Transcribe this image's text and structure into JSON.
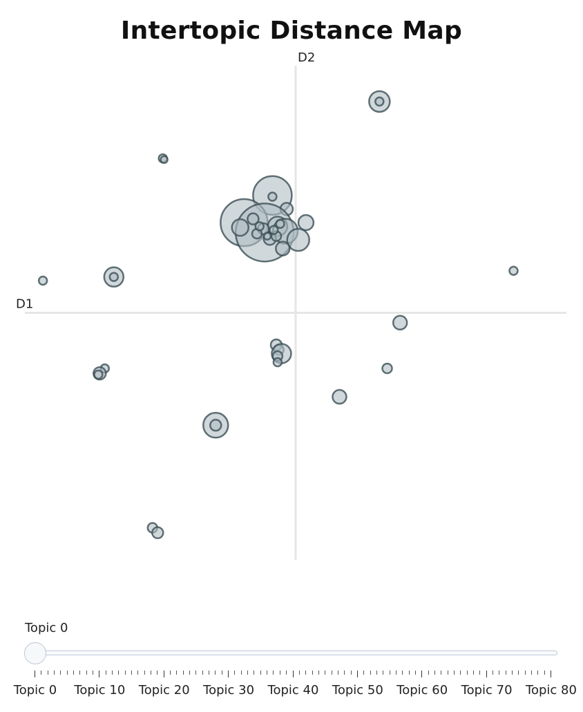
{
  "chart_data": {
    "type": "scatter",
    "title": "Intertopic Distance Map",
    "xlabel": "D1",
    "ylabel": "D2",
    "xlim": [
      -21,
      21
    ],
    "ylim": [
      -20,
      20
    ],
    "grid": false,
    "marker_fill": "#b0bec5",
    "marker_stroke": "#3b4f55",
    "axis_color": "#e6e6e6",
    "points": [
      {
        "x": 6.5,
        "y": 17.1,
        "size": 15
      },
      {
        "x": 6.5,
        "y": 17.1,
        "size": 6
      },
      {
        "x": -10.3,
        "y": 12.5,
        "size": 6
      },
      {
        "x": -10.2,
        "y": 12.4,
        "size": 5
      },
      {
        "x": -1.8,
        "y": 9.5,
        "size": 28
      },
      {
        "x": -1.8,
        "y": 9.4,
        "size": 6
      },
      {
        "x": -0.7,
        "y": 8.4,
        "size": 9
      },
      {
        "x": -4.0,
        "y": 7.3,
        "size": 34
      },
      {
        "x": -2.4,
        "y": 6.5,
        "size": 42
      },
      {
        "x": -4.3,
        "y": 6.9,
        "size": 12
      },
      {
        "x": -3.3,
        "y": 7.6,
        "size": 8
      },
      {
        "x": -1.4,
        "y": 7.0,
        "size": 14
      },
      {
        "x": -0.8,
        "y": 6.6,
        "size": 18
      },
      {
        "x": 0.2,
        "y": 5.9,
        "size": 16
      },
      {
        "x": 0.8,
        "y": 7.3,
        "size": 11
      },
      {
        "x": -2.0,
        "y": 6.0,
        "size": 9
      },
      {
        "x": -2.5,
        "y": 6.8,
        "size": 8
      },
      {
        "x": -3.0,
        "y": 6.4,
        "size": 7
      },
      {
        "x": -2.8,
        "y": 7.0,
        "size": 6
      },
      {
        "x": -1.5,
        "y": 6.2,
        "size": 7
      },
      {
        "x": -1.2,
        "y": 7.2,
        "size": 6
      },
      {
        "x": -1.7,
        "y": 6.7,
        "size": 6
      },
      {
        "x": -2.2,
        "y": 6.2,
        "size": 5
      },
      {
        "x": -1.0,
        "y": 5.2,
        "size": 10
      },
      {
        "x": -14.1,
        "y": 2.9,
        "size": 14
      },
      {
        "x": -14.1,
        "y": 2.9,
        "size": 6
      },
      {
        "x": -19.6,
        "y": 2.6,
        "size": 6
      },
      {
        "x": 16.9,
        "y": 3.4,
        "size": 6
      },
      {
        "x": 8.1,
        "y": -0.8,
        "size": 10
      },
      {
        "x": -1.5,
        "y": -2.6,
        "size": 8
      },
      {
        "x": -1.3,
        "y": -3.0,
        "size": 7
      },
      {
        "x": -1.1,
        "y": -3.3,
        "size": 14
      },
      {
        "x": -1.4,
        "y": -3.5,
        "size": 7
      },
      {
        "x": -1.4,
        "y": -4.0,
        "size": 6
      },
      {
        "x": 7.1,
        "y": -4.5,
        "size": 7
      },
      {
        "x": -14.8,
        "y": -4.5,
        "size": 6
      },
      {
        "x": -15.2,
        "y": -4.9,
        "size": 9
      },
      {
        "x": -15.3,
        "y": -5.0,
        "size": 6
      },
      {
        "x": 3.4,
        "y": -6.8,
        "size": 10
      },
      {
        "x": -6.2,
        "y": -9.1,
        "size": 18
      },
      {
        "x": -6.2,
        "y": -9.1,
        "size": 8
      },
      {
        "x": -11.1,
        "y": -17.4,
        "size": 7
      },
      {
        "x": -10.7,
        "y": -17.8,
        "size": 8
      }
    ]
  },
  "slider": {
    "current_label": "Topic 0",
    "min": 0,
    "max": 80,
    "value": 0,
    "tick_labels": [
      "Topic 0",
      "Topic 10",
      "Topic 20",
      "Topic 30",
      "Topic 40",
      "Topic 50",
      "Topic 60",
      "Topic 70",
      "Topic 80"
    ]
  }
}
